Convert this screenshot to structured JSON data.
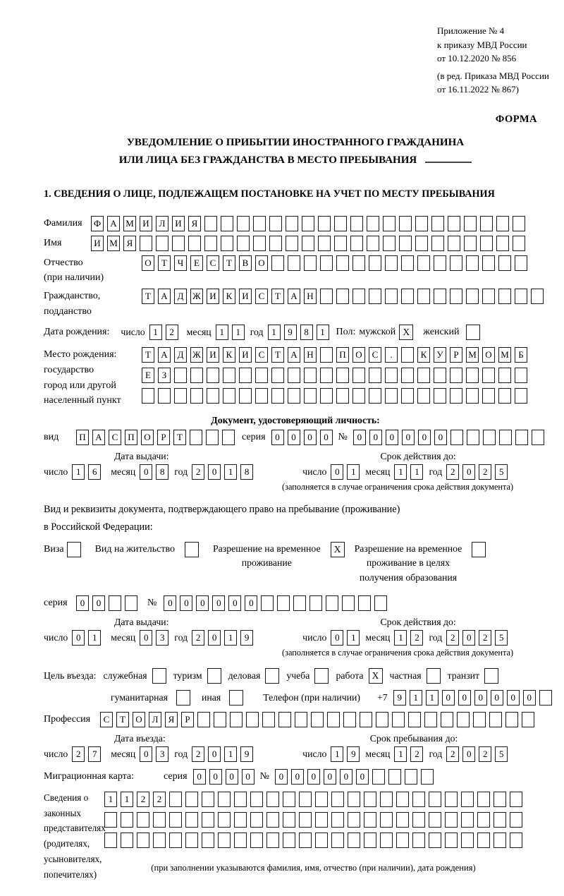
{
  "header": {
    "appendix_lines": [
      "Приложение № 4",
      "к приказу МВД России",
      "от 10.12.2020 № 856"
    ],
    "appendix_note_lines": [
      "(в ред. Приказа МВД России",
      "от 16.11.2022 № 867)"
    ],
    "forma": "ФОРМА",
    "title_line1": "УВЕДОМЛЕНИЕ О ПРИБЫТИИ ИНОСТРАННОГО ГРАЖДАНИНА",
    "title_line2": "ИЛИ ЛИЦА БЕЗ ГРАЖДАНСТВА В МЕСТО ПРЕБЫВАНИЯ",
    "section_title": "1. СВЕДЕНИЯ О ЛИЦЕ, ПОДЛЕЖАЩЕМ ПОСТАНОВКЕ НА УЧЕТ ПО МЕСТУ ПРЕБЫВАНИЯ"
  },
  "labels": {
    "day": "число",
    "month": "месяц",
    "year": "год",
    "series": "серия",
    "number": "№"
  },
  "person": {
    "surname": {
      "label": "Фамилия",
      "value": "ФАМИЛИЯ",
      "cells": 27
    },
    "given_name": {
      "label": "Имя",
      "value": "ИМЯ",
      "cells": 27
    },
    "patronymic": {
      "label": "Отчество",
      "label_note": "(при наличии)",
      "value": "ОТЧЕСТВО",
      "cells": 24
    },
    "citizenship": {
      "label_line1": "Гражданство,",
      "label_line2": "подданство",
      "value": "ТАДЖИКИСТАН",
      "cells": 25
    },
    "birth_date": {
      "label": "Дата рождения:",
      "day": "12",
      "month": "11",
      "year": "1981"
    },
    "sex": {
      "label": "Пол:",
      "male_label": "мужской",
      "male_mark": "X",
      "female_label": "женский",
      "female_mark": ""
    },
    "birth_place": {
      "label": "Место рождения:",
      "sub_labels": [
        "государство",
        "город или другой",
        "населенный пункт"
      ],
      "rows": [
        {
          "value": "ТАДЖИКИСТАН ПОС. КУРМОМБ",
          "cells": 24
        },
        {
          "value": "ЕЗ",
          "cells": 24
        },
        {
          "value": "",
          "cells": 24
        }
      ]
    }
  },
  "identity_doc": {
    "heading": "Документ, удостоверяющий личность:",
    "kind_label": "вид",
    "kind": {
      "value": "ПАСПОРТ",
      "cells": 10
    },
    "series": {
      "value": "0000",
      "cells": 4
    },
    "number": {
      "value": "000000",
      "cells": 12
    },
    "issue_label": "Дата выдачи:",
    "issue": {
      "day": "16",
      "month": "08",
      "year": "2018"
    },
    "valid_label": "Срок действия до:",
    "valid": {
      "day": "01",
      "month": "11",
      "year": "2025"
    },
    "note": "(заполняется в случае ограничения срока действия документа)"
  },
  "residence_doc": {
    "intro_line1": "Вид и реквизиты документа, подтверждающего право на пребывание (проживание)",
    "intro_line2": "в Российской Федерации:",
    "options": [
      {
        "lines": [
          "Виза"
        ],
        "mark": ""
      },
      {
        "lines": [
          "Вид на жительство"
        ],
        "mark": ""
      },
      {
        "lines": [
          "Разрешение на временное",
          "проживание"
        ],
        "mark": "X"
      },
      {
        "lines": [
          "Разрешение на временное",
          "проживание в целях",
          "получения образования"
        ],
        "mark": ""
      }
    ],
    "series": {
      "value": "00",
      "cells": 4
    },
    "number": {
      "value": "000000",
      "cells": 14
    },
    "issue_label": "Дата выдачи:",
    "issue": {
      "day": "01",
      "month": "03",
      "year": "2019"
    },
    "valid_label": "Срок действия до:",
    "valid": {
      "day": "01",
      "month": "12",
      "year": "2025"
    },
    "note": "(заполняется в случае ограничения срока действия документа)"
  },
  "visit": {
    "purpose_label": "Цель въезда:",
    "purposes_row1": [
      {
        "label": "служебная",
        "mark": ""
      },
      {
        "label": "туризм",
        "mark": ""
      },
      {
        "label": "деловая",
        "mark": ""
      },
      {
        "label": "учеба",
        "mark": ""
      },
      {
        "label": "работа",
        "mark": "X"
      },
      {
        "label": "частная",
        "mark": ""
      },
      {
        "label": "транзит",
        "mark": ""
      }
    ],
    "purposes_row2": [
      {
        "label": "гуманитарная",
        "mark": ""
      },
      {
        "label": "иная",
        "mark": ""
      }
    ],
    "phone_label": "Телефон (при наличии)",
    "phone_prefix": "+7",
    "phone": {
      "value": "911000000",
      "cells": 10
    },
    "profession_label": "Профессия",
    "profession": {
      "value": "СТОЛЯР",
      "cells": 27
    },
    "entry_label": "Дата въезда:",
    "entry": {
      "day": "27",
      "month": "03",
      "year": "2019"
    },
    "stay_label": "Срок пребывания до:",
    "stay": {
      "day": "19",
      "month": "12",
      "year": "2025"
    }
  },
  "migration_card": {
    "label": "Миграционная карта:",
    "series": {
      "value": "0000",
      "cells": 4
    },
    "number": {
      "value": "000000",
      "cells": 10
    }
  },
  "representatives": {
    "label_lines": [
      "Сведения о",
      "законных",
      "представителях",
      "(родителях,",
      "усыновителях,",
      "попечителях)"
    ],
    "rows": [
      {
        "value": "1122",
        "cells": 26
      },
      {
        "value": "",
        "cells": 26
      },
      {
        "value": "",
        "cells": 26
      }
    ],
    "note": "(при заполнении указываются фамилия, имя, отчество (при наличии), дата рождения)"
  }
}
